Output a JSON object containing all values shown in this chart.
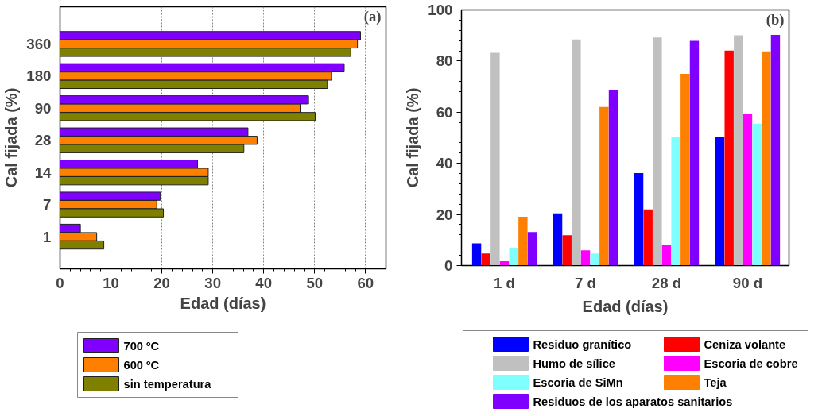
{
  "chart_data": [
    {
      "type": "bar",
      "orientation": "horizontal",
      "xlabel": "Edad (días)",
      "ylabel": "Cal fijada (%)",
      "categories": [
        "360",
        "180",
        "90",
        "28",
        "14",
        "7",
        "1"
      ],
      "series": [
        {
          "name": "700 ºC",
          "color": "#8000ff",
          "values": [
            59.0,
            55.8,
            48.8,
            36.9,
            27.0,
            19.7,
            4.0
          ]
        },
        {
          "name": "600 ºC",
          "color": "#ff8000",
          "values": [
            58.4,
            53.3,
            47.3,
            38.7,
            29.1,
            19.0,
            7.2
          ]
        },
        {
          "name": "sin temperatura",
          "color": "#808000",
          "values": [
            57.1,
            52.5,
            50.1,
            36.1,
            29.1,
            20.3,
            8.6
          ]
        }
      ],
      "xlim": [
        0,
        64
      ],
      "xticks": [
        0,
        10,
        20,
        30,
        40,
        50,
        60
      ],
      "grid": "x",
      "legend": "bottom left",
      "annotations": [
        "(a)"
      ]
    },
    {
      "type": "bar",
      "xlabel": "Edad (días)",
      "ylabel": "Cal fijada (%)",
      "categories": [
        "1 d",
        "7 d",
        "28 d",
        "90 d"
      ],
      "series": [
        {
          "name": "Residuo granítico",
          "color": "#0000ff",
          "values": [
            8.7,
            20.4,
            36.2,
            50.2
          ]
        },
        {
          "name": "Ceniza volante",
          "color": "#ff0000",
          "values": [
            4.7,
            11.9,
            22.0,
            84.1
          ]
        },
        {
          "name": "Humo de sílice",
          "color": "#c0c0c0",
          "values": [
            83.2,
            88.4,
            89.2,
            90.1
          ]
        },
        {
          "name": "Escoria de cobre",
          "color": "#ff00ff",
          "values": [
            1.7,
            6.0,
            8.2,
            59.3
          ]
        },
        {
          "name": "Escoria de SiMn",
          "color": "#80ffff",
          "values": [
            6.7,
            4.7,
            50.5,
            55.5
          ]
        },
        {
          "name": "Teja",
          "color": "#ff8000",
          "values": [
            19.1,
            62.0,
            75.0,
            83.8
          ]
        },
        {
          "name": "Residuos de los aparatos sanitarios",
          "color": "#8000ff",
          "values": [
            13.1,
            68.8,
            87.9,
            90.2
          ]
        }
      ],
      "ylim": [
        0,
        100
      ],
      "yticks": [
        0,
        20,
        40,
        60,
        80,
        100
      ],
      "grid": false,
      "legend": "bottom",
      "annotations": [
        "(b)"
      ]
    }
  ]
}
